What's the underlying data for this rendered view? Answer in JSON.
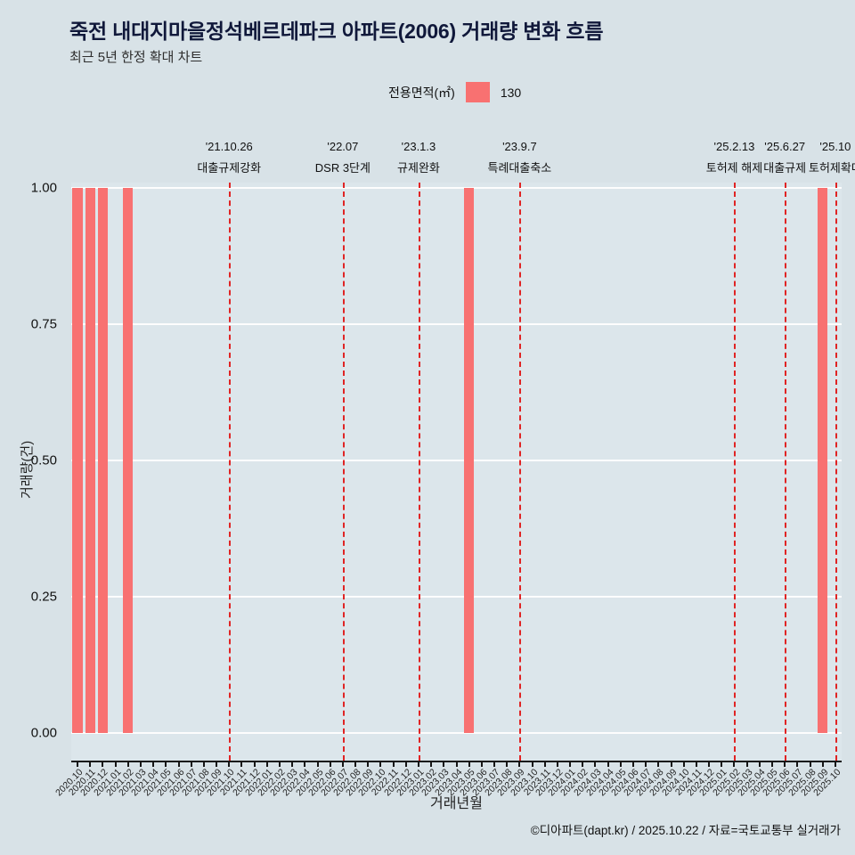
{
  "title": "죽전 내대지마을정석베르데파크 아파트(2006) 거래량 변화 흐름",
  "subtitle": "최근 5년 한정 확대 차트",
  "legend": {
    "label": "전용면적(㎡)",
    "value": "130",
    "color": "#f87171"
  },
  "footer": "©디아파트(dapt.kr) / 2025.10.22 / 자료=국토교통부 실거래가",
  "chart_data": {
    "type": "bar",
    "title": "죽전 내대지마을정석베르데파크 아파트(2006) 거래량 변화 흐름",
    "xlabel": "거래년월",
    "ylabel": "거래량(건)",
    "ylim": [
      0,
      1
    ],
    "yticks": [
      0,
      0.25,
      0.5,
      0.75,
      1
    ],
    "grid": true,
    "legend_position": "top-center",
    "bar_color": "#f87171",
    "annotation_color": "#e02424",
    "background_color": "#d8e2e7",
    "categories": [
      "2020.10",
      "2020.11",
      "2020.12",
      "2021.01",
      "2021.02",
      "2021.03",
      "2021.04",
      "2021.05",
      "2021.06",
      "2021.07",
      "2021.08",
      "2021.09",
      "2021.10",
      "2021.11",
      "2021.12",
      "2022.01",
      "2022.02",
      "2022.03",
      "2022.04",
      "2022.05",
      "2022.06",
      "2022.07",
      "2022.08",
      "2022.09",
      "2022.10",
      "2022.11",
      "2022.12",
      "2023.01",
      "2023.02",
      "2023.03",
      "2023.04",
      "2023.05",
      "2023.06",
      "2023.07",
      "2023.08",
      "2023.09",
      "2023.10",
      "2023.11",
      "2023.12",
      "2024.01",
      "2024.02",
      "2024.03",
      "2024.04",
      "2024.05",
      "2024.06",
      "2024.07",
      "2024.08",
      "2024.09",
      "2024.10",
      "2024.11",
      "2024.12",
      "2025.01",
      "2025.02",
      "2025.03",
      "2025.04",
      "2025.05",
      "2025.06",
      "2025.07",
      "2025.08",
      "2025.09",
      "2025.10"
    ],
    "values": [
      1,
      1,
      1,
      0,
      1,
      0,
      0,
      0,
      0,
      0,
      0,
      0,
      0,
      0,
      0,
      0,
      0,
      0,
      0,
      0,
      0,
      0,
      0,
      0,
      0,
      0,
      0,
      0,
      0,
      0,
      0,
      1,
      0,
      0,
      0,
      0,
      0,
      0,
      0,
      0,
      0,
      0,
      0,
      0,
      0,
      0,
      0,
      0,
      0,
      0,
      0,
      0,
      0,
      0,
      0,
      0,
      0,
      0,
      0,
      1,
      0
    ],
    "annotations": [
      {
        "x": "2021.10",
        "date": "'21.10.26",
        "label": "대출규제강화"
      },
      {
        "x": "2022.07",
        "date": "'22.07",
        "label": "DSR 3단계"
      },
      {
        "x": "2023.01",
        "date": "'23.1.3",
        "label": "규제완화"
      },
      {
        "x": "2023.09",
        "date": "'23.9.7",
        "label": "특례대출축소"
      },
      {
        "x": "2025.02",
        "date": "'25.2.13",
        "label": "토허제 해제"
      },
      {
        "x": "2025.06",
        "date": "'25.6.27",
        "label": "대출규제"
      },
      {
        "x": "2025.10",
        "date": "'25.10",
        "label": "토허제확대"
      }
    ]
  }
}
